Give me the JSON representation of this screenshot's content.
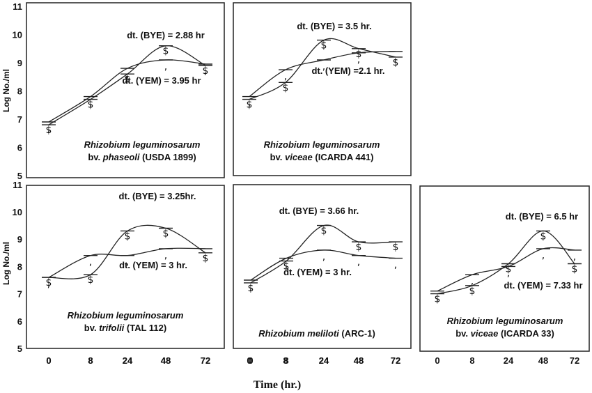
{
  "figure": {
    "y_axis_label": "Log No./ml",
    "x_axis_title": "Time (hr.)"
  },
  "chart_data": [
    {
      "type": "line",
      "organism_lines": [
        [
          {
            "t": "Rhizobium leguminosarum",
            "i": true
          }
        ],
        [
          {
            "t": "bv. ",
            "i": false
          },
          {
            "t": "phaseoli",
            "i": true
          },
          {
            "t": " (USDA 1899)",
            "i": false
          }
        ]
      ],
      "x": [
        "0",
        "8",
        "24",
        "48",
        "72"
      ],
      "ylim": [
        5,
        11
      ],
      "yticks": [
        "5",
        "6",
        "7",
        "8",
        "9",
        "10",
        "11"
      ],
      "series": [
        {
          "marker": "$",
          "values": [
            6.8,
            7.7,
            8.6,
            9.6,
            8.9
          ],
          "annotation": "dt. (BYE) = 2.88 hr"
        },
        {
          "marker": ",",
          "values": [
            6.9,
            7.8,
            8.8,
            9.1,
            8.95
          ],
          "annotation": "dt. (YEM) = 3.95 hr"
        }
      ]
    },
    {
      "type": "line",
      "organism_lines": [
        [
          {
            "t": "Rhizobium leguminosarum",
            "i": true
          }
        ],
        [
          {
            "t": "bv. ",
            "i": false
          },
          {
            "t": "viceae",
            "i": true
          },
          {
            "t": "  (ICARDA 441)",
            "i": false
          }
        ]
      ],
      "x": [
        "0",
        "8",
        "24",
        "48",
        "72"
      ],
      "ylim": [
        5,
        11
      ],
      "yticks": [
        "5",
        "6",
        "7",
        "8",
        "9",
        "10",
        "11"
      ],
      "series": [
        {
          "marker": "$",
          "values": [
            7.7,
            8.3,
            9.8,
            9.5,
            9.2
          ],
          "annotation": "dt. (BYE) = 3.5 hr."
        },
        {
          "marker": ",",
          "values": [
            7.8,
            8.75,
            9.1,
            9.35,
            9.4
          ],
          "annotation": "dt. (YEM) =2.1 hr."
        }
      ]
    },
    {
      "type": "line",
      "organism_lines": [
        [
          {
            "t": "Rhizobium  leguminosarum",
            "i": true
          }
        ],
        [
          {
            "t": " bv. ",
            "i": false
          },
          {
            "t": "trifolii",
            "i": true
          },
          {
            "t": " (TAL 112)",
            "i": false
          }
        ]
      ],
      "x": [
        "0",
        "8",
        "24",
        "48",
        "72"
      ],
      "ylim": [
        5,
        11
      ],
      "yticks": [
        "5",
        "6",
        "7",
        "8",
        "9",
        "10",
        "11"
      ],
      "series": [
        {
          "marker": "$",
          "values": [
            7.6,
            7.7,
            9.3,
            9.4,
            8.5
          ],
          "annotation": "dt. (BYE) = 3.25hr."
        },
        {
          "marker": ",",
          "values": [
            7.6,
            8.4,
            8.4,
            8.65,
            8.65
          ],
          "annotation": "dt. (YEM) = 3 hr."
        }
      ]
    },
    {
      "type": "line",
      "organism_lines": [
        [
          {
            "t": "Rhizobium meliloti",
            "i": true
          },
          {
            "t": " (ARC-1)",
            "i": false
          }
        ]
      ],
      "x": [
        "0",
        "8",
        "24",
        "48",
        "72"
      ],
      "ylim": [
        5,
        11
      ],
      "yticks": [],
      "series": [
        {
          "marker": "$",
          "values": [
            7.4,
            8.2,
            9.5,
            8.9,
            8.9
          ],
          "annotation": "dt. (BYE) = 3.66 hr."
        },
        {
          "marker": ",",
          "values": [
            7.5,
            8.3,
            8.6,
            8.4,
            8.3
          ],
          "annotation": "dt. (YEM) = 3 hr."
        }
      ]
    },
    {
      "type": "line",
      "organism_lines": [
        [
          {
            "t": "Rhizobium leguminosarum",
            "i": true
          }
        ],
        [
          {
            "t": "bv. ",
            "i": false
          },
          {
            "t": "viceae",
            "i": true
          },
          {
            "t": " (ICARDA 33)",
            "i": false
          }
        ]
      ],
      "x": [
        "0",
        "8",
        "24",
        "48",
        "72"
      ],
      "ylim": [
        5,
        11
      ],
      "yticks": [],
      "series": [
        {
          "marker": "$",
          "values": [
            7.0,
            7.3,
            8.1,
            9.3,
            8.1
          ],
          "annotation": "dt. (BYE) = 6.5 hr"
        },
        {
          "marker": ",",
          "values": [
            7.1,
            7.7,
            8.0,
            8.65,
            8.6
          ],
          "annotation": "dt. (YEM) = 7.33 hr"
        }
      ]
    }
  ]
}
